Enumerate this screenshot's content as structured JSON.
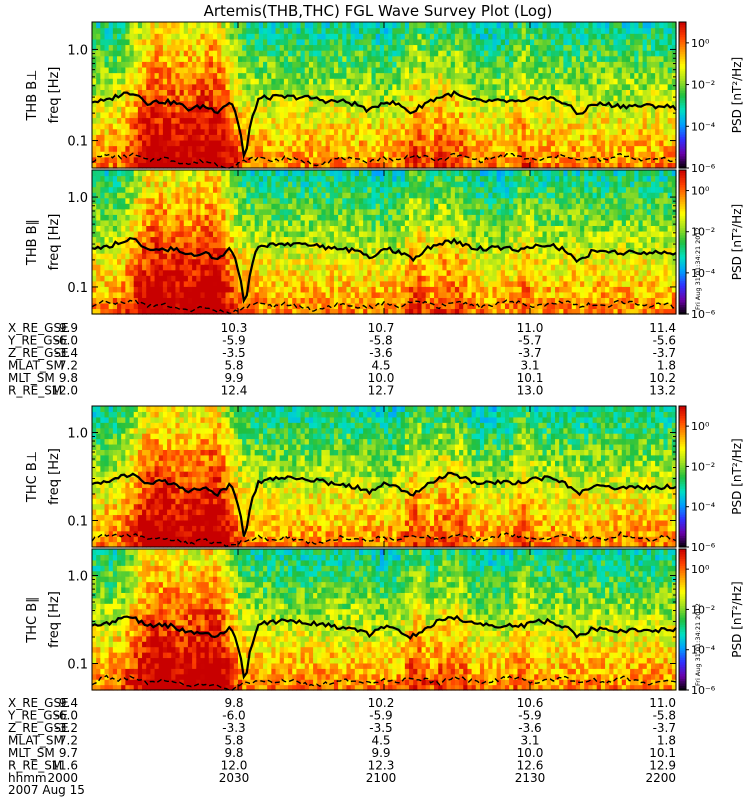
{
  "title": "Artemis(THB,THC) FGL Wave Survey Plot (Log)",
  "date_label": "2007 Aug 15",
  "timestamp_stamp": "Fri Aug 31 01:34:21 2012",
  "colors": {
    "psd_colormap": [
      "#000000",
      "#6a00a8",
      "#3030ff",
      "#00a0ff",
      "#00e0c0",
      "#20c040",
      "#a0e020",
      "#ffff00",
      "#ffa000",
      "#ff4000",
      "#c80000"
    ],
    "median_curve": "#000000",
    "lower_curve": "#000000",
    "background": "#ffffff"
  },
  "colorbar": {
    "label": "PSD [nT²/Hz]",
    "tick_labels": [
      "10⁰",
      "10⁻²",
      "10⁻⁴",
      "10⁻⁶"
    ]
  },
  "panels": [
    {
      "label": "THB B⊥",
      "ylabel": "freq [Hz]",
      "ytick_labels": [
        "1.0",
        "0.1"
      ],
      "show_stamp": false
    },
    {
      "label": "THB B∥",
      "ylabel": "freq [Hz]",
      "ytick_labels": [
        "1.0",
        "0.1"
      ],
      "show_stamp": true
    },
    {
      "label": "THC B⊥",
      "ylabel": "freq [Hz]",
      "ytick_labels": [
        "1.0",
        "0.1"
      ],
      "show_stamp": false
    },
    {
      "label": "THC B∥",
      "ylabel": "freq [Hz]",
      "ytick_labels": [
        "1.0",
        "0.1"
      ],
      "show_stamp": true
    }
  ],
  "ephemeris_thb": {
    "rows": [
      {
        "name": "X_RE_GSE",
        "values": [
          "9.9",
          "10.3",
          "10.7",
          "11.0",
          "11.4"
        ]
      },
      {
        "name": "Y_RE_GSE",
        "values": [
          "-6.0",
          "-5.9",
          "-5.8",
          "-5.7",
          "-5.6"
        ]
      },
      {
        "name": "Z_RE_GSE",
        "values": [
          "-3.4",
          "-3.5",
          "-3.6",
          "-3.7",
          "-3.7"
        ]
      },
      {
        "name": "MLAT_SM",
        "values": [
          "7.2",
          "5.8",
          "4.5",
          "3.1",
          "1.8"
        ]
      },
      {
        "name": "MLT_SM",
        "values": [
          "9.8",
          "9.9",
          "10.0",
          "10.1",
          "10.2"
        ]
      },
      {
        "name": "R_RE_SM",
        "values": [
          "12.0",
          "12.4",
          "12.7",
          "13.0",
          "13.2"
        ]
      }
    ]
  },
  "ephemeris_thc": {
    "rows": [
      {
        "name": "X_RE_GSE",
        "values": [
          "9.4",
          "9.8",
          "10.2",
          "10.6",
          "11.0"
        ]
      },
      {
        "name": "Y_RE_GSE",
        "values": [
          "-6.0",
          "-6.0",
          "-5.9",
          "-5.9",
          "-5.8"
        ]
      },
      {
        "name": "Z_RE_GSE",
        "values": [
          "-3.2",
          "-3.3",
          "-3.5",
          "-3.6",
          "-3.7"
        ]
      },
      {
        "name": "MLAT_SM",
        "values": [
          "7.2",
          "5.8",
          "4.5",
          "3.1",
          "1.8"
        ]
      },
      {
        "name": "MLT_SM",
        "values": [
          "9.7",
          "9.8",
          "9.9",
          "10.0",
          "10.1"
        ]
      },
      {
        "name": "R_RE_SM",
        "values": [
          "11.6",
          "12.0",
          "12.3",
          "12.6",
          "12.9"
        ]
      },
      {
        "name": "hhmm",
        "values": [
          "2000",
          "2030",
          "2100",
          "2130",
          "2200"
        ]
      }
    ]
  },
  "chart_data": {
    "type": "heatmap",
    "title": "Artemis(THB,THC) FGL Wave Survey Plot (Log)",
    "xlabel": "hhmm",
    "x_ticks": [
      "2000",
      "2030",
      "2100",
      "2130",
      "2200"
    ],
    "xlim": [
      "20:00",
      "22:00"
    ],
    "ylabel": "freq [Hz]",
    "yscale": "log",
    "ylim": [
      0.05,
      2.0
    ],
    "colorbar_range": [
      1e-06,
      10
    ],
    "colorbar_scale": "log",
    "series": [
      {
        "panel": "THB B⊥",
        "median_freq_hz": [
          0.27,
          0.27,
          0.32,
          0.34,
          0.26,
          0.27,
          0.26,
          0.22,
          0.24,
          0.21,
          0.27,
          0.05,
          0.29,
          0.3,
          0.3,
          0.3,
          0.29,
          0.27,
          0.27,
          0.25,
          0.21,
          0.27,
          0.25,
          0.2,
          0.26,
          0.3,
          0.33,
          0.28,
          0.27,
          0.27,
          0.27,
          0.26,
          0.3,
          0.29,
          0.26,
          0.19,
          0.25,
          0.25,
          0.24,
          0.24,
          0.24,
          0.24,
          0.23
        ]
      },
      {
        "panel": "THB B∥",
        "median_freq_hz": [
          0.27,
          0.27,
          0.32,
          0.34,
          0.26,
          0.27,
          0.26,
          0.22,
          0.24,
          0.21,
          0.27,
          0.05,
          0.29,
          0.3,
          0.3,
          0.3,
          0.29,
          0.27,
          0.27,
          0.25,
          0.21,
          0.27,
          0.25,
          0.2,
          0.26,
          0.3,
          0.33,
          0.28,
          0.27,
          0.27,
          0.27,
          0.26,
          0.3,
          0.29,
          0.26,
          0.19,
          0.25,
          0.25,
          0.24,
          0.24,
          0.24,
          0.24,
          0.23
        ]
      },
      {
        "panel": "THC B⊥",
        "median_freq_hz": [
          0.27,
          0.28,
          0.32,
          0.33,
          0.27,
          0.28,
          0.26,
          0.22,
          0.23,
          0.2,
          0.26,
          0.05,
          0.28,
          0.3,
          0.3,
          0.29,
          0.29,
          0.27,
          0.26,
          0.24,
          0.21,
          0.26,
          0.24,
          0.2,
          0.25,
          0.31,
          0.34,
          0.29,
          0.27,
          0.27,
          0.27,
          0.27,
          0.3,
          0.3,
          0.26,
          0.2,
          0.25,
          0.24,
          0.24,
          0.24,
          0.24,
          0.24,
          0.24
        ]
      },
      {
        "panel": "THC B∥",
        "median_freq_hz": [
          0.27,
          0.28,
          0.32,
          0.33,
          0.27,
          0.28,
          0.26,
          0.22,
          0.23,
          0.2,
          0.26,
          0.05,
          0.28,
          0.3,
          0.3,
          0.29,
          0.29,
          0.27,
          0.26,
          0.24,
          0.21,
          0.26,
          0.24,
          0.2,
          0.25,
          0.31,
          0.34,
          0.29,
          0.27,
          0.27,
          0.27,
          0.27,
          0.3,
          0.3,
          0.26,
          0.2,
          0.25,
          0.24,
          0.24,
          0.24,
          0.24,
          0.24,
          0.24
        ]
      }
    ],
    "lower_curve_freq_hz": [
      0.06,
      0.07,
      0.065,
      0.07,
      0.06,
      0.065,
      0.06,
      0.055,
      0.06,
      0.055,
      0.05,
      0.06,
      0.065,
      0.06,
      0.065,
      0.06,
      0.055,
      0.06,
      0.065,
      0.06,
      0.06,
      0.065,
      0.06,
      0.07,
      0.065,
      0.06,
      0.07,
      0.065,
      0.06,
      0.065,
      0.07,
      0.065,
      0.06,
      0.065,
      0.07,
      0.06,
      0.065,
      0.06,
      0.07,
      0.065,
      0.06,
      0.065,
      0.06
    ],
    "legend": "colorbar-right",
    "grid": false
  }
}
